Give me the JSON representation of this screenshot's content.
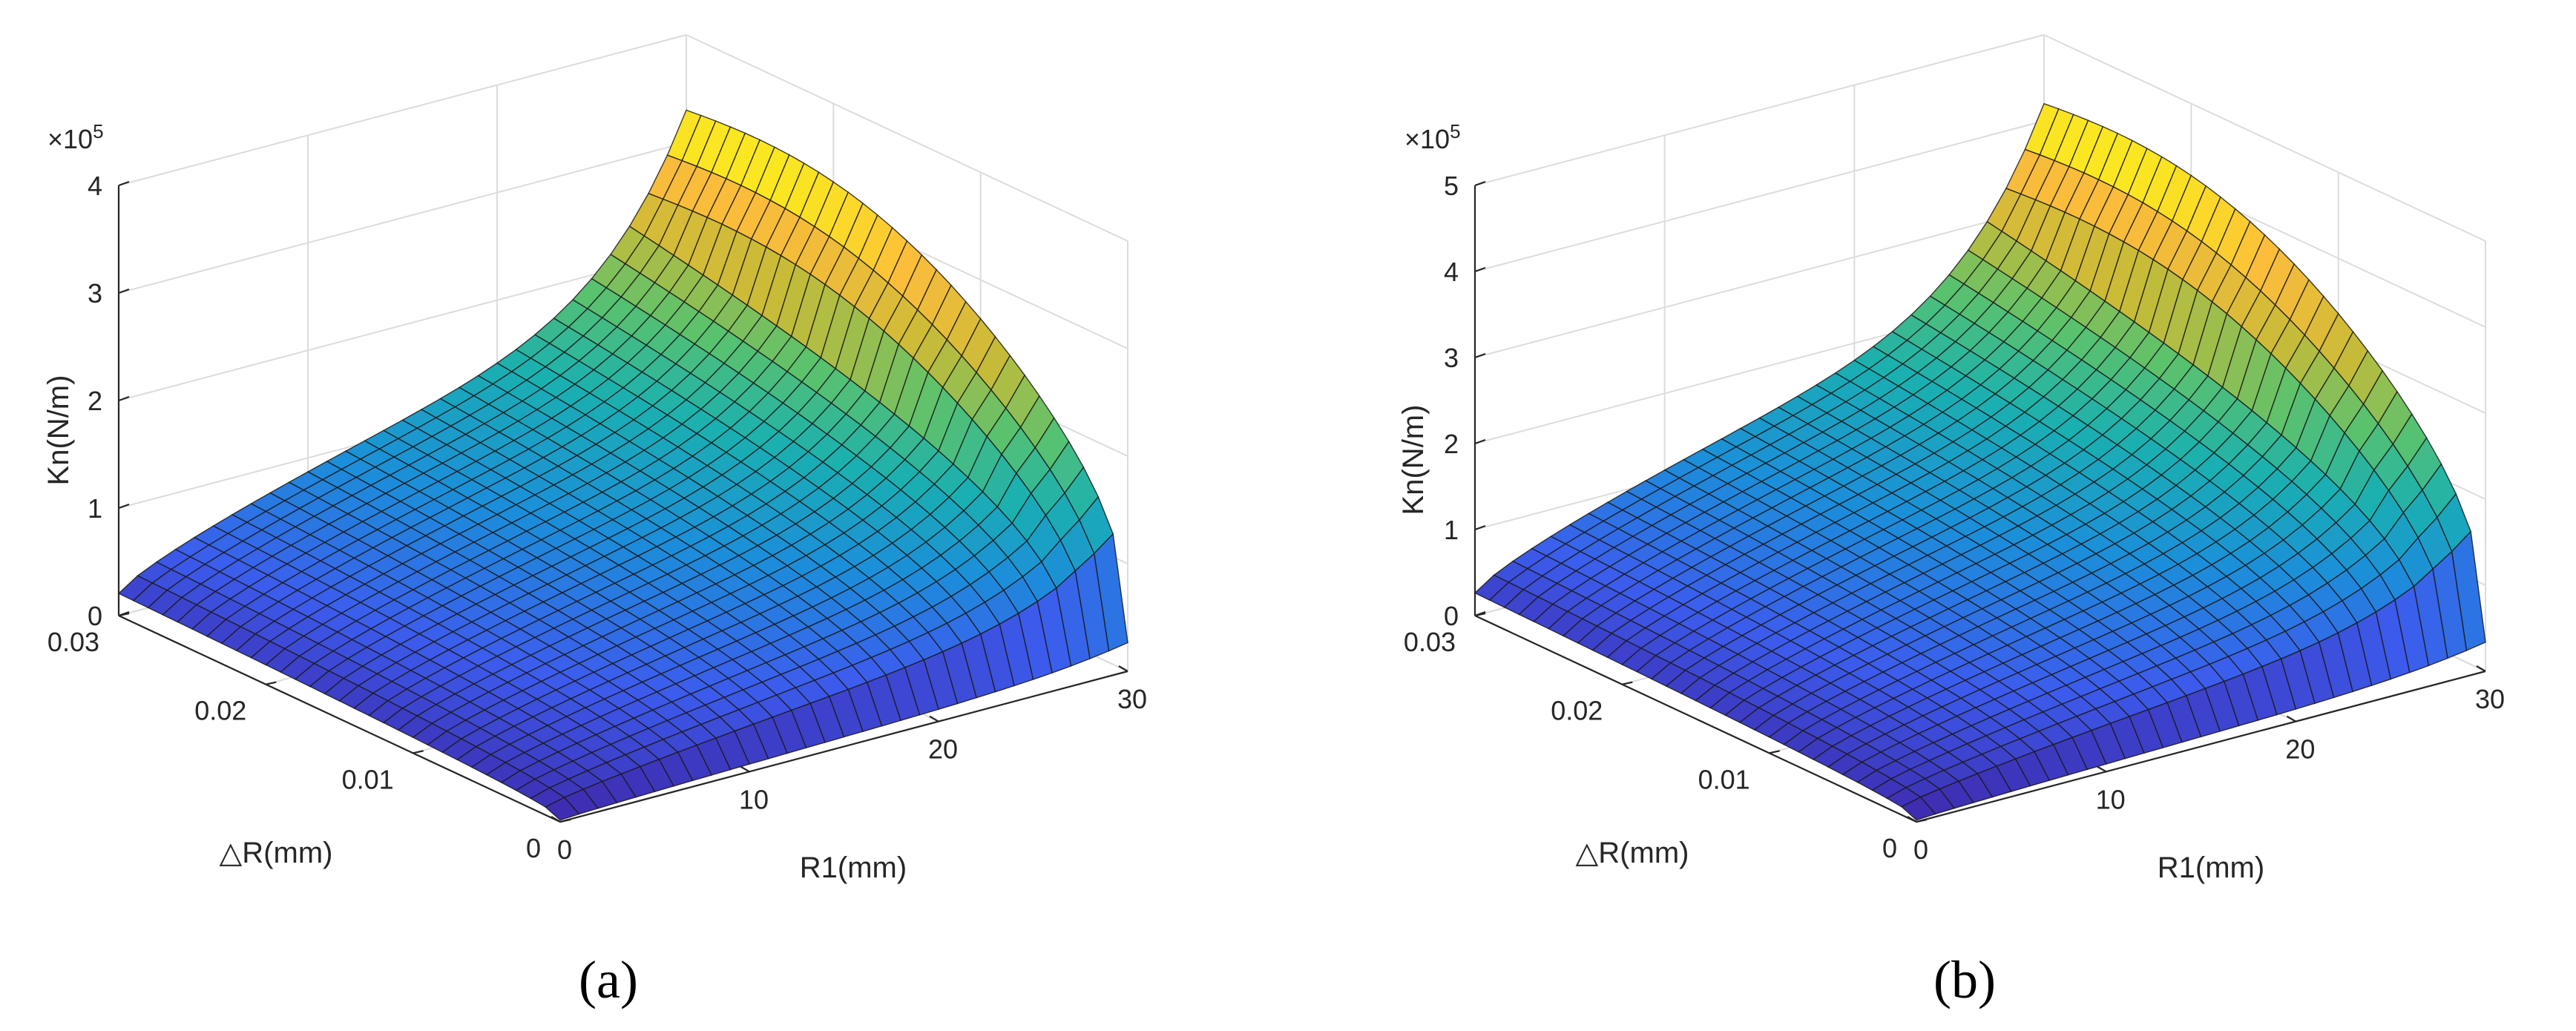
{
  "chart_data": [
    {
      "type": "surface3d",
      "panel_caption": "(a)",
      "title": "",
      "zlabel": "Kn(N/m)",
      "xlabel": "R1(mm)",
      "ylabel": "△R(mm)",
      "z_exponent_label": "×10",
      "z_exponent": "5",
      "xlim": [
        0,
        30
      ],
      "ylim": [
        0,
        0.03
      ],
      "zlim": [
        0,
        4
      ],
      "x_ticks": [
        "0",
        "10",
        "20",
        "30"
      ],
      "y_ticks": [
        "0",
        "0.01",
        "0.02",
        "0.03"
      ],
      "z_ticks": [
        "0",
        "1",
        "2",
        "3",
        "4"
      ],
      "zmax_value": 3.3,
      "colormap": [
        "#3e26a8",
        "#3c5cee",
        "#1b8fd9",
        "#1ab0b0",
        "#5ac26d",
        "#c9bb37",
        "#fcbc3b",
        "#f9fb15"
      ],
      "grid": true
    },
    {
      "type": "surface3d",
      "panel_caption": "(b)",
      "title": "",
      "zlabel": "Kn(N/m)",
      "xlabel": "R1(mm)",
      "ylabel": "△R(mm)",
      "z_exponent_label": "×10",
      "z_exponent": "5",
      "xlim": [
        0,
        30
      ],
      "ylim": [
        0,
        0.03
      ],
      "zlim": [
        0,
        5
      ],
      "x_ticks": [
        "0",
        "10",
        "20",
        "30"
      ],
      "y_ticks": [
        "0",
        "0.01",
        "0.02",
        "0.03"
      ],
      "z_ticks": [
        "0",
        "1",
        "2",
        "3",
        "4",
        "5"
      ],
      "zmax_value": 4.2,
      "colormap": [
        "#3e26a8",
        "#3c5cee",
        "#1b8fd9",
        "#1ab0b0",
        "#5ac26d",
        "#c9bb37",
        "#fcbc3b",
        "#f9fb15"
      ],
      "grid": true
    }
  ]
}
